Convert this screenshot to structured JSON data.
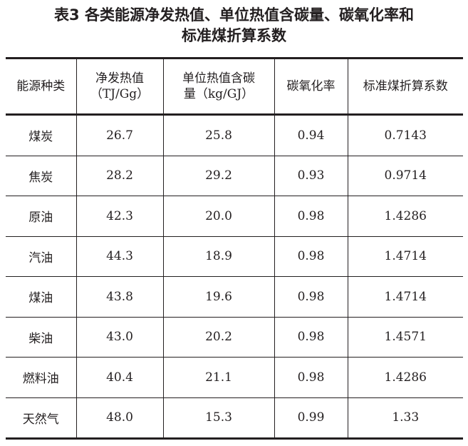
{
  "title": {
    "line1": "表3 各类能源净发热值、单位热值含碳量、碳氧化率和",
    "line2": "标准煤折算系数"
  },
  "table": {
    "headers": [
      {
        "line1": "能源种类",
        "line2": ""
      },
      {
        "line1": "净发热值",
        "line2": "（TJ/Gg）"
      },
      {
        "line1": "单位热值含碳",
        "line2": "量（kg/GJ）"
      },
      {
        "line1": "碳氧化率",
        "line2": ""
      },
      {
        "line1": "标准煤折算系数",
        "line2": ""
      }
    ],
    "rows": [
      [
        "煤炭",
        "26.7",
        "25.8",
        "0.94",
        "0.7143"
      ],
      [
        "焦炭",
        "28.2",
        "29.2",
        "0.93",
        "0.9714"
      ],
      [
        "原油",
        "42.3",
        "20.0",
        "0.98",
        "1.4286"
      ],
      [
        "汽油",
        "44.3",
        "18.9",
        "0.98",
        "1.4714"
      ],
      [
        "煤油",
        "43.8",
        "19.6",
        "0.98",
        "1.4714"
      ],
      [
        "柴油",
        "43.0",
        "20.2",
        "0.98",
        "1.4571"
      ],
      [
        "燃料油",
        "40.4",
        "21.1",
        "0.98",
        "1.4286"
      ],
      [
        "天然气",
        "48.0",
        "15.3",
        "0.99",
        "1.33"
      ]
    ]
  }
}
